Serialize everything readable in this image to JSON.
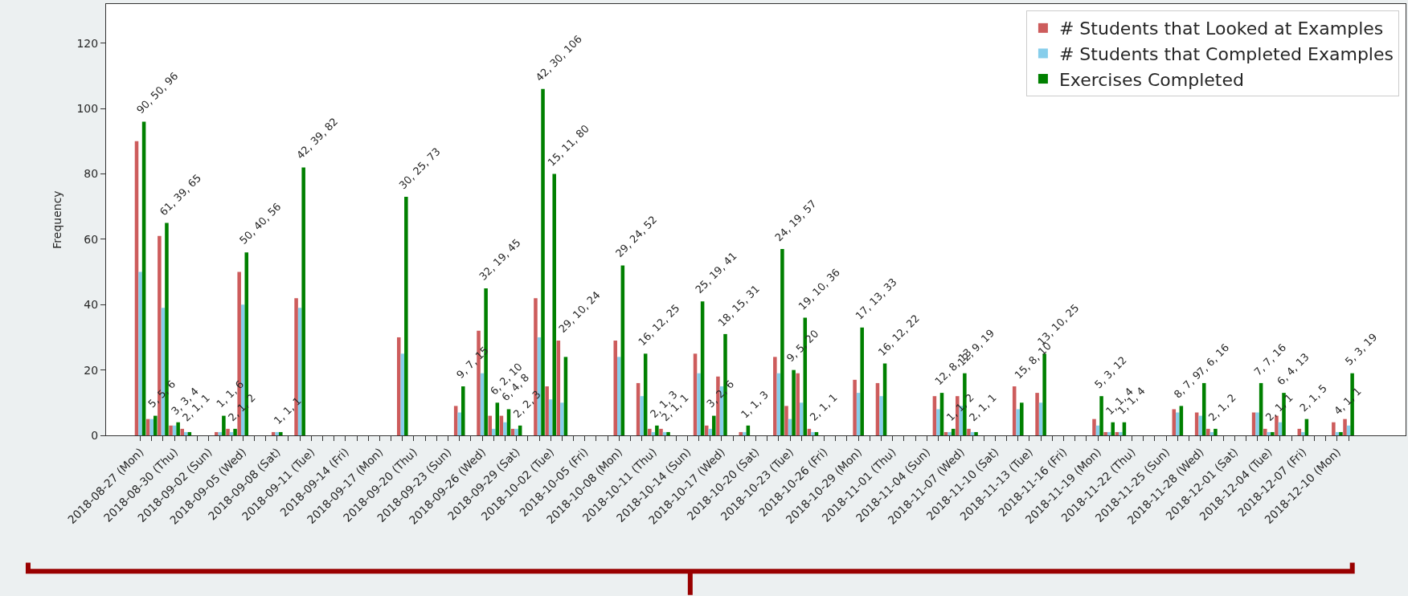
{
  "chart_data": {
    "type": "bar",
    "ylabel": "Frequency",
    "x": [
      "2018-08-27",
      "2018-08-28",
      "2018-08-29",
      "2018-08-30",
      "2018-08-31",
      "2018-09-03",
      "2018-09-04",
      "2018-09-05",
      "2018-09-08",
      "2018-09-10",
      "2018-09-19",
      "2018-09-24",
      "2018-09-26",
      "2018-09-27",
      "2018-09-28",
      "2018-09-29",
      "2018-10-01",
      "2018-10-02",
      "2018-10-03",
      "2018-10-08",
      "2018-10-10",
      "2018-10-11",
      "2018-10-12",
      "2018-10-15",
      "2018-10-16",
      "2018-10-17",
      "2018-10-19",
      "2018-10-22",
      "2018-10-23",
      "2018-10-24",
      "2018-10-25",
      "2018-10-29",
      "2018-10-31",
      "2018-11-05",
      "2018-11-06",
      "2018-11-07",
      "2018-11-08",
      "2018-11-12",
      "2018-11-14",
      "2018-11-19",
      "2018-11-20",
      "2018-11-21",
      "2018-11-26",
      "2018-11-28",
      "2018-11-29",
      "2018-12-03",
      "2018-12-04",
      "2018-12-05",
      "2018-12-07",
      "2018-12-10",
      "2018-12-11"
    ],
    "series": [
      {
        "name": "# Students that Looked at Examples",
        "color": "#cd5c5c",
        "values": [
          90,
          5,
          61,
          3,
          2,
          1,
          2,
          50,
          1,
          42,
          30,
          9,
          32,
          6,
          6,
          2,
          42,
          15,
          29,
          29,
          16,
          2,
          2,
          25,
          3,
          18,
          1,
          24,
          9,
          19,
          2,
          17,
          16,
          12,
          1,
          12,
          2,
          15,
          13,
          5,
          1,
          1,
          8,
          7,
          2,
          7,
          2,
          6,
          2,
          4,
          5
        ]
      },
      {
        "name": "# Students that Completed Examples",
        "color": "#87ceeb",
        "values": [
          50,
          5,
          39,
          3,
          1,
          1,
          1,
          40,
          1,
          39,
          25,
          7,
          19,
          2,
          4,
          2,
          30,
          11,
          10,
          24,
          12,
          1,
          1,
          19,
          2,
          15,
          1,
          19,
          5,
          10,
          1,
          13,
          12,
          8,
          1,
          9,
          1,
          8,
          10,
          3,
          1,
          1,
          7,
          6,
          1,
          7,
          1,
          4,
          1,
          1,
          3
        ]
      },
      {
        "name": "Exercises Completed",
        "color": "#008000",
        "values": [
          96,
          6,
          65,
          4,
          1,
          6,
          2,
          56,
          1,
          82,
          73,
          15,
          45,
          10,
          8,
          3,
          106,
          80,
          24,
          52,
          25,
          3,
          1,
          41,
          6,
          31,
          3,
          57,
          20,
          36,
          1,
          33,
          22,
          13,
          2,
          19,
          1,
          10,
          25,
          12,
          4,
          4,
          9,
          16,
          2,
          16,
          1,
          13,
          5,
          1,
          19
        ]
      }
    ],
    "annotations": [
      {
        "text": "90, 50, 96",
        "x": "2018-08-27",
        "y": 96
      },
      {
        "text": "5, 5, 6",
        "x": "2018-08-28",
        "y": 6
      },
      {
        "text": "61, 39, 65",
        "x": "2018-08-29",
        "y": 65
      },
      {
        "text": "3, 3, 4",
        "x": "2018-08-30",
        "y": 4
      },
      {
        "text": "2, 1, 1",
        "x": "2018-08-31",
        "y": 2
      },
      {
        "text": "1, 1, 6",
        "x": "2018-09-03",
        "y": 6
      },
      {
        "text": "2, 1, 2",
        "x": "2018-09-04",
        "y": 2
      },
      {
        "text": "50, 40, 56",
        "x": "2018-09-05",
        "y": 56
      },
      {
        "text": "1, 1, 1",
        "x": "2018-09-08",
        "y": 1
      },
      {
        "text": "42, 39, 82",
        "x": "2018-09-10",
        "y": 82
      },
      {
        "text": "30, 25, 73",
        "x": "2018-09-19",
        "y": 73
      },
      {
        "text": "9, 7, 15",
        "x": "2018-09-24",
        "y": 15
      },
      {
        "text": "32, 19, 45",
        "x": "2018-09-26",
        "y": 45
      },
      {
        "text": "6, 2, 10",
        "x": "2018-09-27",
        "y": 10
      },
      {
        "text": "6, 4, 8",
        "x": "2018-09-28",
        "y": 8
      },
      {
        "text": "2, 2, 3",
        "x": "2018-09-29",
        "y": 3
      },
      {
        "text": "42, 30, 106",
        "x": "2018-10-01",
        "y": 106
      },
      {
        "text": "15, 11, 80",
        "x": "2018-10-02",
        "y": 80
      },
      {
        "text": "29, 10, 24",
        "x": "2018-10-03",
        "y": 29
      },
      {
        "text": "29, 24, 52",
        "x": "2018-10-08",
        "y": 52
      },
      {
        "text": "16, 12, 25",
        "x": "2018-10-10",
        "y": 25
      },
      {
        "text": "2, 1, 3",
        "x": "2018-10-11",
        "y": 3
      },
      {
        "text": "2, 1, 1",
        "x": "2018-10-12",
        "y": 2
      },
      {
        "text": "25, 19, 41",
        "x": "2018-10-15",
        "y": 41
      },
      {
        "text": "3, 2, 6",
        "x": "2018-10-16",
        "y": 6
      },
      {
        "text": "18, 15, 31",
        "x": "2018-10-17",
        "y": 31
      },
      {
        "text": "1, 1, 3",
        "x": "2018-10-19",
        "y": 3
      },
      {
        "text": "24, 19, 57",
        "x": "2018-10-22",
        "y": 57
      },
      {
        "text": "9, 5, 20",
        "x": "2018-10-23",
        "y": 20
      },
      {
        "text": "19, 10, 36",
        "x": "2018-10-24",
        "y": 36
      },
      {
        "text": "2, 1, 1",
        "x": "2018-10-25",
        "y": 2
      },
      {
        "text": "17, 13, 33",
        "x": "2018-10-29",
        "y": 33
      },
      {
        "text": "16, 12, 22",
        "x": "2018-10-31",
        "y": 22
      },
      {
        "text": "12, 8, 13",
        "x": "2018-11-05",
        "y": 13
      },
      {
        "text": "1, 1, 2",
        "x": "2018-11-06",
        "y": 2
      },
      {
        "text": "12, 9, 19",
        "x": "2018-11-07",
        "y": 19
      },
      {
        "text": "2, 1, 1",
        "x": "2018-11-08",
        "y": 2
      },
      {
        "text": "15, 8, 10",
        "x": "2018-11-12",
        "y": 15
      },
      {
        "text": "13, 10, 25",
        "x": "2018-11-14",
        "y": 25
      },
      {
        "text": "5, 3, 12",
        "x": "2018-11-19",
        "y": 12
      },
      {
        "text": "1, 1, 4",
        "x": "2018-11-20",
        "y": 4
      },
      {
        "text": "1, 1, 4",
        "x": "2018-11-21",
        "y": 4
      },
      {
        "text": "8, 7, 9",
        "x": "2018-11-26",
        "y": 9
      },
      {
        "text": "7, 6, 16",
        "x": "2018-11-28",
        "y": 16
      },
      {
        "text": "2, 1, 2",
        "x": "2018-11-29",
        "y": 2
      },
      {
        "text": "7, 7, 16",
        "x": "2018-12-03",
        "y": 16
      },
      {
        "text": "2, 1, 1",
        "x": "2018-12-04",
        "y": 2
      },
      {
        "text": "6, 4, 13",
        "x": "2018-12-05",
        "y": 13
      },
      {
        "text": "2, 1, 5",
        "x": "2018-12-07",
        "y": 5
      },
      {
        "text": "4, 1, 1",
        "x": "2018-12-10",
        "y": 4
      },
      {
        "text": "5, 3, 19",
        "x": "2018-12-11",
        "y": 19
      }
    ],
    "xlim": [
      "2018-08-24",
      "2018-12-16"
    ],
    "xticks": [
      {
        "value": "2018-08-27",
        "label": "2018-08-27 (Mon)"
      },
      {
        "value": "2018-08-28",
        "label": null
      },
      {
        "value": "2018-08-29",
        "label": null
      },
      {
        "value": "2018-08-30",
        "label": "2018-08-30 (Thu)"
      },
      {
        "value": "2018-08-31",
        "label": null
      },
      {
        "value": "2018-09-01",
        "label": null
      },
      {
        "value": "2018-09-02",
        "label": "2018-09-02 (Sun)"
      },
      {
        "value": "2018-09-03",
        "label": null
      },
      {
        "value": "2018-09-04",
        "label": null
      },
      {
        "value": "2018-09-05",
        "label": "2018-09-05 (Wed)"
      },
      {
        "value": "2018-09-06",
        "label": null
      },
      {
        "value": "2018-09-07",
        "label": null
      },
      {
        "value": "2018-09-08",
        "label": "2018-09-08 (Sat)"
      },
      {
        "value": "2018-09-09",
        "label": null
      },
      {
        "value": "2018-09-10",
        "label": null
      },
      {
        "value": "2018-09-11",
        "label": "2018-09-11 (Tue)"
      },
      {
        "value": "2018-09-12",
        "label": null
      },
      {
        "value": "2018-09-13",
        "label": null
      },
      {
        "value": "2018-09-14",
        "label": "2018-09-14 (Fri)"
      },
      {
        "value": "2018-09-15",
        "label": null
      },
      {
        "value": "2018-09-16",
        "label": null
      },
      {
        "value": "2018-09-17",
        "label": "2018-09-17 (Mon)"
      },
      {
        "value": "2018-09-18",
        "label": null
      },
      {
        "value": "2018-09-19",
        "label": null
      },
      {
        "value": "2018-09-20",
        "label": "2018-09-20 (Thu)"
      },
      {
        "value": "2018-09-21",
        "label": null
      },
      {
        "value": "2018-09-22",
        "label": null
      },
      {
        "value": "2018-09-23",
        "label": "2018-09-23 (Sun)"
      },
      {
        "value": "2018-09-24",
        "label": null
      },
      {
        "value": "2018-09-25",
        "label": null
      },
      {
        "value": "2018-09-26",
        "label": "2018-09-26 (Wed)"
      },
      {
        "value": "2018-09-27",
        "label": null
      },
      {
        "value": "2018-09-28",
        "label": null
      },
      {
        "value": "2018-09-29",
        "label": "2018-09-29 (Sat)"
      },
      {
        "value": "2018-09-30",
        "label": null
      },
      {
        "value": "2018-10-01",
        "label": null
      },
      {
        "value": "2018-10-02",
        "label": "2018-10-02 (Tue)"
      },
      {
        "value": "2018-10-03",
        "label": null
      },
      {
        "value": "2018-10-04",
        "label": null
      },
      {
        "value": "2018-10-05",
        "label": "2018-10-05 (Fri)"
      },
      {
        "value": "2018-10-06",
        "label": null
      },
      {
        "value": "2018-10-07",
        "label": null
      },
      {
        "value": "2018-10-08",
        "label": "2018-10-08 (Mon)"
      },
      {
        "value": "2018-10-09",
        "label": null
      },
      {
        "value": "2018-10-10",
        "label": null
      },
      {
        "value": "2018-10-11",
        "label": "2018-10-11 (Thu)"
      },
      {
        "value": "2018-10-12",
        "label": null
      },
      {
        "value": "2018-10-13",
        "label": null
      },
      {
        "value": "2018-10-14",
        "label": "2018-10-14 (Sun)"
      },
      {
        "value": "2018-10-15",
        "label": null
      },
      {
        "value": "2018-10-16",
        "label": null
      },
      {
        "value": "2018-10-17",
        "label": "2018-10-17 (Wed)"
      },
      {
        "value": "2018-10-18",
        "label": null
      },
      {
        "value": "2018-10-19",
        "label": null
      },
      {
        "value": "2018-10-20",
        "label": "2018-10-20 (Sat)"
      },
      {
        "value": "2018-10-21",
        "label": null
      },
      {
        "value": "2018-10-22",
        "label": null
      },
      {
        "value": "2018-10-23",
        "label": "2018-10-23 (Tue)"
      },
      {
        "value": "2018-10-24",
        "label": null
      },
      {
        "value": "2018-10-25",
        "label": null
      },
      {
        "value": "2018-10-26",
        "label": "2018-10-26 (Fri)"
      },
      {
        "value": "2018-10-27",
        "label": null
      },
      {
        "value": "2018-10-28",
        "label": null
      },
      {
        "value": "2018-10-29",
        "label": "2018-10-29 (Mon)"
      },
      {
        "value": "2018-10-30",
        "label": null
      },
      {
        "value": "2018-10-31",
        "label": null
      },
      {
        "value": "2018-11-01",
        "label": "2018-11-01 (Thu)"
      },
      {
        "value": "2018-11-02",
        "label": null
      },
      {
        "value": "2018-11-03",
        "label": null
      },
      {
        "value": "2018-11-04",
        "label": "2018-11-04 (Sun)"
      },
      {
        "value": "2018-11-05",
        "label": null
      },
      {
        "value": "2018-11-06",
        "label": null
      },
      {
        "value": "2018-11-07",
        "label": "2018-11-07 (Wed)"
      },
      {
        "value": "2018-11-08",
        "label": null
      },
      {
        "value": "2018-11-09",
        "label": null
      },
      {
        "value": "2018-11-10",
        "label": "2018-11-10 (Sat)"
      },
      {
        "value": "2018-11-11",
        "label": null
      },
      {
        "value": "2018-11-12",
        "label": null
      },
      {
        "value": "2018-11-13",
        "label": "2018-11-13 (Tue)"
      },
      {
        "value": "2018-11-14",
        "label": null
      },
      {
        "value": "2018-11-15",
        "label": null
      },
      {
        "value": "2018-11-16",
        "label": "2018-11-16 (Fri)"
      },
      {
        "value": "2018-11-17",
        "label": null
      },
      {
        "value": "2018-11-18",
        "label": null
      },
      {
        "value": "2018-11-19",
        "label": "2018-11-19 (Mon)"
      },
      {
        "value": "2018-11-20",
        "label": null
      },
      {
        "value": "2018-11-21",
        "label": null
      },
      {
        "value": "2018-11-22",
        "label": "2018-11-22 (Thu)"
      },
      {
        "value": "2018-11-23",
        "label": null
      },
      {
        "value": "2018-11-24",
        "label": null
      },
      {
        "value": "2018-11-25",
        "label": "2018-11-25 (Sun)"
      },
      {
        "value": "2018-11-26",
        "label": null
      },
      {
        "value": "2018-11-27",
        "label": null
      },
      {
        "value": "2018-11-28",
        "label": "2018-11-28 (Wed)"
      },
      {
        "value": "2018-11-29",
        "label": null
      },
      {
        "value": "2018-11-30",
        "label": null
      },
      {
        "value": "2018-12-01",
        "label": "2018-12-01 (Sat)"
      },
      {
        "value": "2018-12-02",
        "label": null
      },
      {
        "value": "2018-12-03",
        "label": null
      },
      {
        "value": "2018-12-04",
        "label": "2018-12-04 (Tue)"
      },
      {
        "value": "2018-12-05",
        "label": null
      },
      {
        "value": "2018-12-06",
        "label": null
      },
      {
        "value": "2018-12-07",
        "label": "2018-12-07 (Fri)"
      },
      {
        "value": "2018-12-08",
        "label": null
      },
      {
        "value": "2018-12-09",
        "label": null
      },
      {
        "value": "2018-12-10",
        "label": "2018-12-10 (Mon)"
      },
      {
        "value": "2018-12-11",
        "label": null
      }
    ],
    "ylim": [
      0,
      132
    ],
    "yticks": [
      0,
      20,
      40,
      60,
      80,
      100,
      120
    ],
    "legend": "top right"
  }
}
